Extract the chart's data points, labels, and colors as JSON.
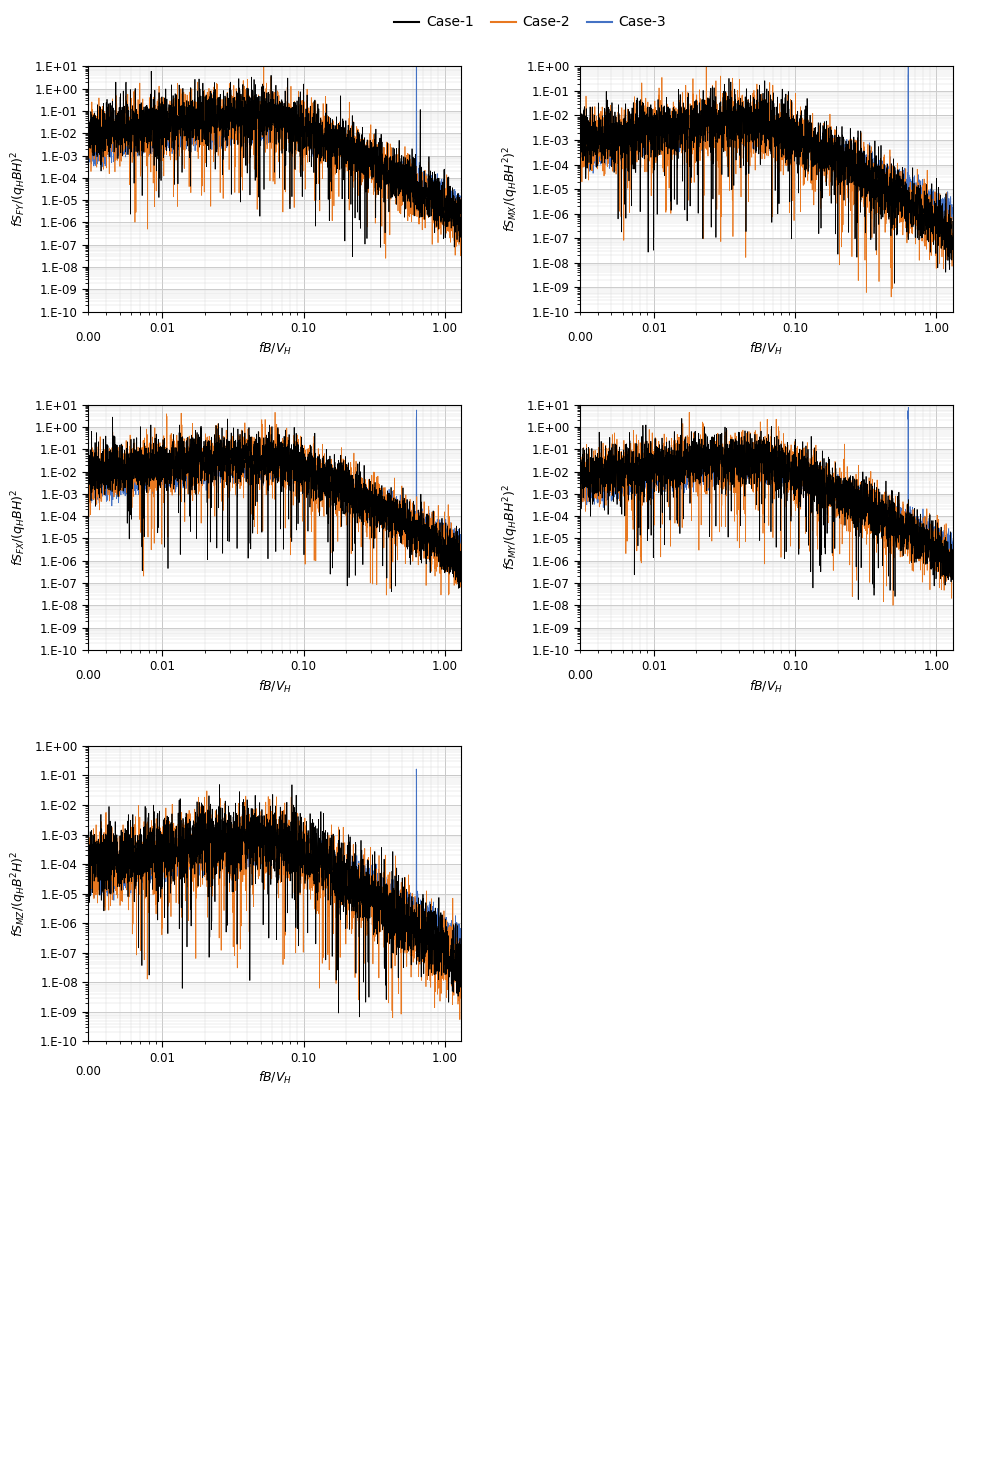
{
  "legend_entries": [
    "Case-1",
    "Case-2",
    "Case-3"
  ],
  "case1_color": "#000000",
  "case2_color": "#e87820",
  "case3_color": "#4472c4",
  "subplots": [
    {
      "ylabel": "$fS_{FY}/(q_HBH)^2$",
      "xlabel": "$fB/V_H$",
      "ytop_exp": 1,
      "ybot_exp": -10,
      "peak_c1": 0.06,
      "amp_c1": 0.07,
      "peak_c2": 0.06,
      "amp_c2": 0.05,
      "peak_c3": 0.08,
      "amp_c3": 0.012,
      "sigma_l": 0.65,
      "sigma_r": 0.55,
      "noise_c1": 0.6,
      "noise_c2": 0.65,
      "noise_c3": 0.25,
      "rolloff_c1": 2.5,
      "rolloff_c2": 2.5,
      "rolloff_c3": 1.8,
      "spike_c3": true,
      "spike_c1": true
    },
    {
      "ylabel": "$fS_{MX}/(q_HBH^2)^2$",
      "xlabel": "$fB/V_H$",
      "ytop_exp": 0,
      "ybot_exp": -10,
      "peak_c1": 0.06,
      "amp_c1": 0.006,
      "peak_c2": 0.06,
      "amp_c2": 0.004,
      "peak_c3": 0.08,
      "amp_c3": 0.002,
      "sigma_l": 0.65,
      "sigma_r": 0.55,
      "noise_c1": 0.6,
      "noise_c2": 0.65,
      "noise_c3": 0.25,
      "rolloff_c1": 2.5,
      "rolloff_c2": 2.5,
      "rolloff_c3": 1.8,
      "spike_c3": true,
      "spike_c1": false
    },
    {
      "ylabel": "$fS_{FX}/(q_HBH)^2$",
      "xlabel": "$fB/V_H$",
      "ytop_exp": 1,
      "ybot_exp": -10,
      "peak_c1": 0.06,
      "amp_c1": 0.05,
      "peak_c2": 0.06,
      "amp_c2": 0.04,
      "peak_c3": 0.08,
      "amp_c3": 0.012,
      "sigma_l": 0.65,
      "sigma_r": 0.55,
      "noise_c1": 0.6,
      "noise_c2": 0.65,
      "noise_c3": 0.25,
      "rolloff_c1": 2.5,
      "rolloff_c2": 2.5,
      "rolloff_c3": 1.8,
      "spike_c3": true,
      "spike_c1": false
    },
    {
      "ylabel": "$fS_{MY}/(q_HBH^2)^2$",
      "xlabel": "$fB/V_H$",
      "ytop_exp": 1,
      "ybot_exp": -10,
      "peak_c1": 0.06,
      "amp_c1": 0.04,
      "peak_c2": 0.06,
      "amp_c2": 0.03,
      "peak_c3": 0.08,
      "amp_c3": 0.01,
      "sigma_l": 0.65,
      "sigma_r": 0.55,
      "noise_c1": 0.6,
      "noise_c2": 0.65,
      "noise_c3": 0.25,
      "rolloff_c1": 2.5,
      "rolloff_c2": 2.5,
      "rolloff_c3": 1.8,
      "spike_c3": true,
      "spike_c1": false
    },
    {
      "ylabel": "$fS_{MZ}/(q_HB^2H)^2$",
      "xlabel": "$fB/V_H$",
      "ytop_exp": 0,
      "ybot_exp": -10,
      "peak_c1": 0.07,
      "amp_c1": 0.0008,
      "peak_c2": 0.07,
      "amp_c2": 0.0005,
      "peak_c3": 0.09,
      "amp_c3": 0.0003,
      "sigma_l": 0.65,
      "sigma_r": 0.55,
      "noise_c1": 0.6,
      "noise_c2": 0.65,
      "noise_c3": 0.25,
      "rolloff_c1": 2.5,
      "rolloff_c2": 2.5,
      "rolloff_c3": 1.8,
      "spike_c3": true,
      "spike_c1": false
    }
  ],
  "n_points": 3000,
  "xmin": 0.003,
  "xmax": 1.3,
  "background_color": "#ffffff",
  "plot_bg_color": "#ffffff",
  "grid_major_color": "#c8c8c8",
  "grid_minor_color": "#dcdcdc",
  "linewidth_c1": 0.55,
  "linewidth_c2": 0.55,
  "linewidth_c3": 0.55
}
